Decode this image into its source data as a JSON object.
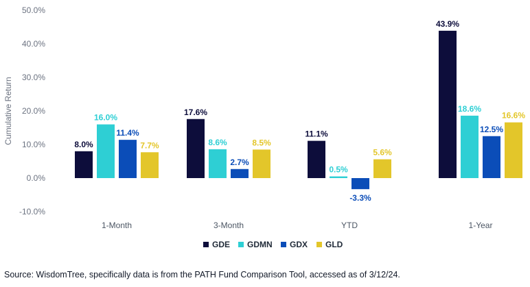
{
  "chart_data": {
    "type": "bar",
    "ylabel": "Cumulative Return",
    "ylim": [
      -10,
      50
    ],
    "yticks": [
      -10,
      0,
      10,
      20,
      30,
      40,
      50
    ],
    "ytick_labels": [
      "-10.0%",
      "0.0%",
      "10.0%",
      "20.0%",
      "30.0%",
      "40.0%",
      "50.0%"
    ],
    "categories": [
      "1-Month",
      "3-Month",
      "YTD",
      "1-Year"
    ],
    "legend_position": "bottom",
    "grid": false,
    "series": [
      {
        "name": "GDE",
        "color": "#0d0d3b",
        "values": [
          8.0,
          17.6,
          11.1,
          43.9
        ],
        "labels": [
          "8.0%",
          "17.6%",
          "11.1%",
          "43.9%"
        ]
      },
      {
        "name": "GDMN",
        "color": "#2ecfd4",
        "values": [
          16.0,
          8.6,
          0.5,
          18.6
        ],
        "labels": [
          "16.0%",
          "8.6%",
          "0.5%",
          "18.6%"
        ]
      },
      {
        "name": "GDX",
        "color": "#0b4db8",
        "values": [
          11.4,
          2.7,
          -3.3,
          12.5
        ],
        "labels": [
          "11.4%",
          "2.7%",
          "-3.3%",
          "12.5%"
        ]
      },
      {
        "name": "GLD",
        "color": "#e3c62a",
        "values": [
          7.7,
          8.5,
          5.6,
          16.6
        ],
        "labels": [
          "7.7%",
          "8.5%",
          "5.6%",
          "16.6%"
        ]
      }
    ]
  },
  "source_note": "Source: WisdomTree, specifically data is from the PATH Fund Comparison Tool, accessed as of 3/12/24."
}
